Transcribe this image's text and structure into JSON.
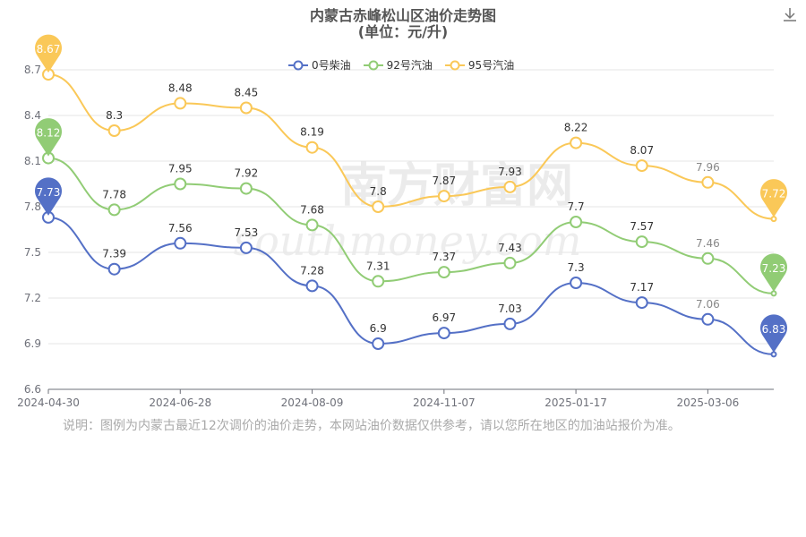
{
  "title": "内蒙古赤峰松山区油价走势图",
  "subtitle": "(单位：元/升)",
  "note": "说明：图例为内蒙古最近12次调价的油价走势，本网站油价数据仅供参考，请以您所在地区的加油站报价为准。",
  "watermark": "南方财富网",
  "watermark_sub": "southmoney.com",
  "download_icon": "download-icon",
  "colors": {
    "diesel0": "#5470c6",
    "gas92": "#91cc75",
    "gas95": "#fac858"
  },
  "chart_data": {
    "type": "line",
    "x_ticks": [
      "2024-04-30",
      "2024-06-28",
      "2024-08-09",
      "2024-11-07",
      "2025-01-17",
      "2025-03-06"
    ],
    "ylim": [
      6.6,
      8.8
    ],
    "y_ticks": [
      6.6,
      6.9,
      7.2,
      7.5,
      7.8,
      8.1,
      8.4,
      8.7
    ],
    "grid": true,
    "legend_position": "top-center",
    "series": [
      {
        "name": "0号柴油",
        "values": [
          7.73,
          7.39,
          7.56,
          7.53,
          7.28,
          6.9,
          6.97,
          7.03,
          7.3,
          7.17,
          7.06,
          6.83
        ],
        "max": 7.73,
        "min": 6.83
      },
      {
        "name": "92号汽油",
        "values": [
          8.12,
          7.78,
          7.95,
          7.92,
          7.68,
          7.31,
          7.37,
          7.43,
          7.7,
          7.57,
          7.46,
          7.23
        ],
        "max": 8.12,
        "min": 7.23
      },
      {
        "name": "95号汽油",
        "values": [
          8.67,
          8.3,
          8.48,
          8.45,
          8.19,
          7.8,
          7.87,
          7.93,
          8.22,
          8.07,
          7.96,
          7.72
        ],
        "max": 8.67,
        "min": 7.72
      }
    ]
  }
}
